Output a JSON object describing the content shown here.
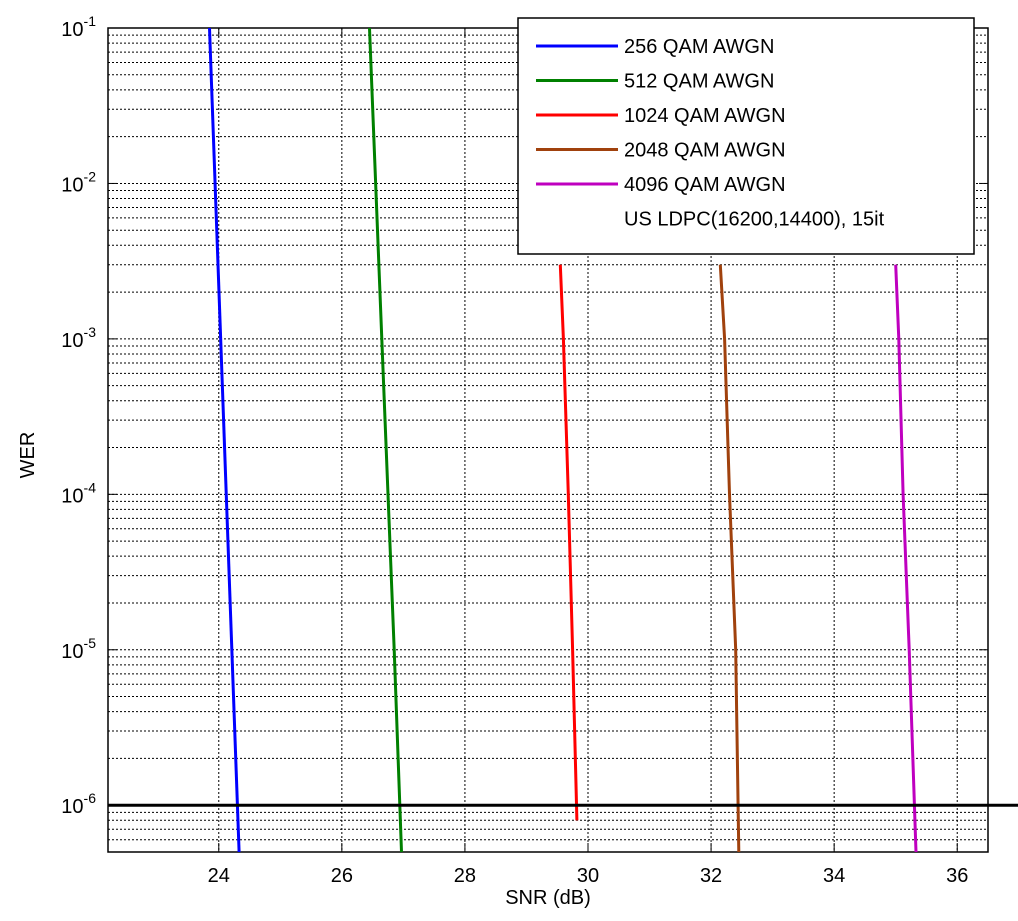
{
  "chart_data": {
    "type": "line",
    "xlabel": "SNR (dB)",
    "ylabel": "WER",
    "xlim": [
      22.2,
      36.5
    ],
    "ylim": [
      5e-07,
      0.1
    ],
    "yscale": "log",
    "grid": true,
    "x_ticks": [
      24,
      26,
      28,
      30,
      32,
      34,
      36
    ],
    "x_tick_labels": [
      "24",
      "26",
      "28",
      "30",
      "32",
      "34",
      "36"
    ],
    "y_ticks": [
      1e-06,
      1e-05,
      0.0001,
      0.001,
      0.01,
      0.1
    ],
    "y_tick_labels": [
      {
        "base": "10",
        "exp": "-6"
      },
      {
        "base": "10",
        "exp": "-5"
      },
      {
        "base": "10",
        "exp": "-4"
      },
      {
        "base": "10",
        "exp": "-3"
      },
      {
        "base": "10",
        "exp": "-2"
      },
      {
        "base": "10",
        "exp": "-1"
      }
    ],
    "legend_position": "top-right",
    "legend_note": "US LDPC(16200,14400), 15it",
    "series": [
      {
        "name": "256 QAM AWGN",
        "color": "#0000ff",
        "points": [
          [
            23.85,
            0.1
          ],
          [
            24.33,
            5e-07
          ]
        ]
      },
      {
        "name": "512 QAM AWGN",
        "color": "#008000",
        "points": [
          [
            26.45,
            0.1
          ],
          [
            26.65,
            0.001
          ],
          [
            26.75,
            0.0001
          ],
          [
            26.85,
            1e-05
          ],
          [
            26.97,
            5e-07
          ]
        ]
      },
      {
        "name": "1024 QAM AWGN",
        "color": "#ff0000",
        "points": [
          [
            29.55,
            0.003
          ],
          [
            29.6,
            0.001
          ],
          [
            29.68,
            0.0001
          ],
          [
            29.75,
            1e-05
          ],
          [
            29.82,
            8e-07
          ]
        ]
      },
      {
        "name": "2048 QAM AWGN",
        "color": "#a0410d",
        "points": [
          [
            32.15,
            0.003
          ],
          [
            32.22,
            0.001
          ],
          [
            32.3,
            0.0001
          ],
          [
            32.4,
            1e-05
          ],
          [
            32.45,
            5e-07
          ]
        ]
      },
      {
        "name": "4096 QAM AWGN",
        "color": "#bf00bf",
        "points": [
          [
            35.0,
            0.003
          ],
          [
            35.05,
            0.001
          ],
          [
            35.12,
            0.0001
          ],
          [
            35.22,
            1e-05
          ],
          [
            35.33,
            5e-07
          ]
        ]
      }
    ],
    "reference_line": {
      "y": 1e-06,
      "color": "#000000"
    }
  }
}
